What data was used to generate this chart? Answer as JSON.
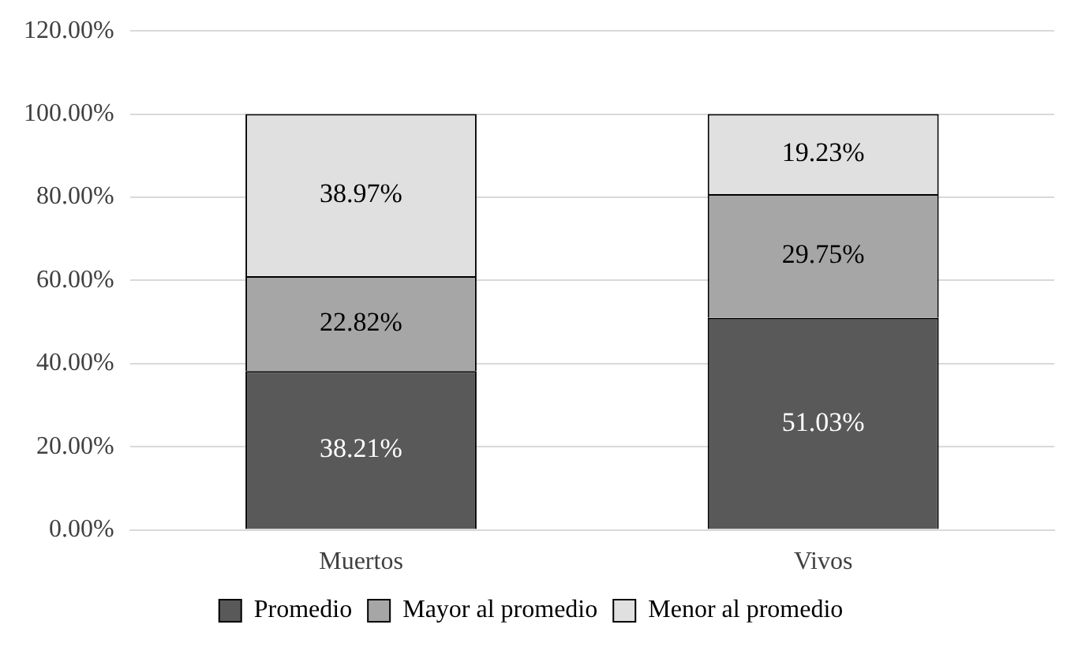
{
  "chart_data": {
    "type": "bar",
    "stacked": true,
    "categories": [
      "Muertos",
      "Vivos"
    ],
    "series": [
      {
        "name": "Promedio",
        "color": "#595959",
        "values": [
          38.21,
          51.03
        ],
        "value_labels": [
          "38.21%",
          "51.03%"
        ]
      },
      {
        "name": "Mayor al promedio",
        "color": "#a6a6a6",
        "values": [
          22.82,
          29.75
        ],
        "value_labels": [
          "22.82%",
          "29.75%"
        ]
      },
      {
        "name": "Menor al promedio",
        "color": "#e0e0e0",
        "values": [
          38.97,
          19.23
        ],
        "value_labels": [
          "38.97%",
          "19.23%"
        ]
      }
    ],
    "ylim": [
      0,
      120
    ],
    "yticks": [
      {
        "value": 0,
        "label": "0.00%"
      },
      {
        "value": 20,
        "label": "20.00%"
      },
      {
        "value": 40,
        "label": "40.00%"
      },
      {
        "value": 60,
        "label": "60.00%"
      },
      {
        "value": 80,
        "label": "80.00%"
      },
      {
        "value": 100,
        "label": "100.00%"
      },
      {
        "value": 120,
        "label": "120.00%"
      }
    ],
    "grid": "y",
    "legend": "bottom"
  }
}
